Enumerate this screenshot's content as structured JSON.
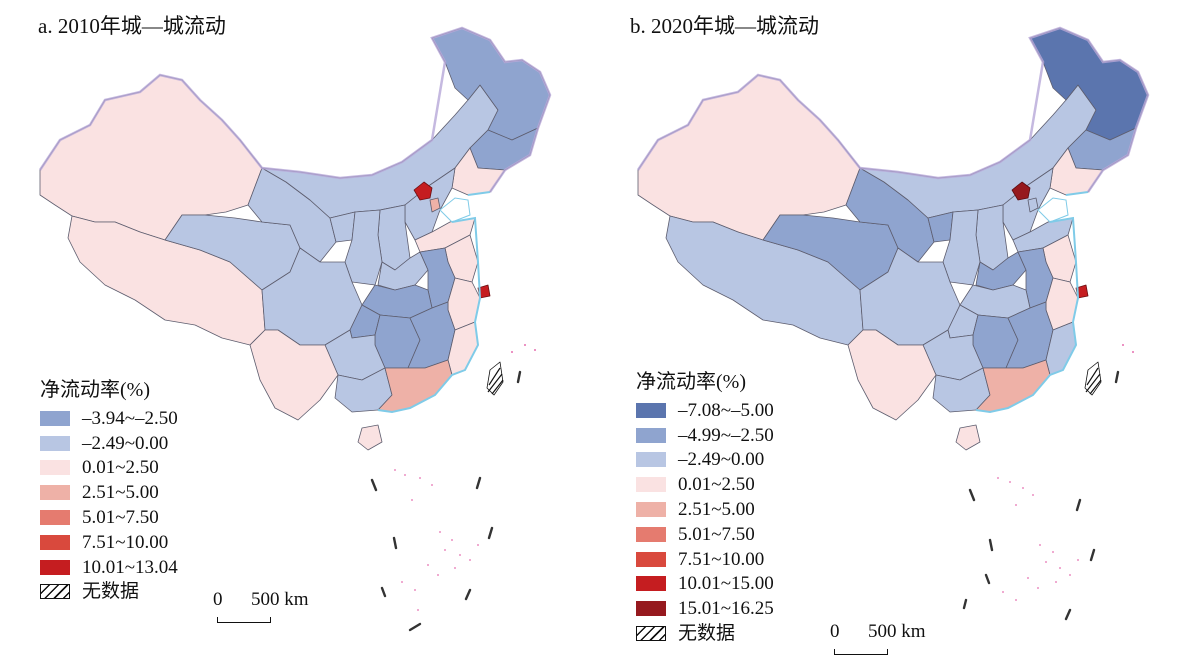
{
  "panels": [
    {
      "title": "a. 2010年城—城流动",
      "legend_title": "净流动率(%)",
      "legend": [
        {
          "label": "–3.94~–2.50",
          "color": "#8fa4cf"
        },
        {
          "label": "–2.49~0.00",
          "color": "#b8c6e3"
        },
        {
          "label": "0.01~2.50",
          "color": "#fae2e2"
        },
        {
          "label": "2.51~5.00",
          "color": "#eeb1a7"
        },
        {
          "label": "5.01~7.50",
          "color": "#e57b6f"
        },
        {
          "label": "7.51~10.00",
          "color": "#d9493d"
        },
        {
          "label": "10.01~13.04",
          "color": "#c51d20"
        }
      ],
      "no_data_label": "无数据",
      "scale_zero": "0",
      "scale_distance": "500 km"
    },
    {
      "title": "b. 2020年城—城流动",
      "legend_title": "净流动率(%)",
      "legend": [
        {
          "label": "–7.08~–5.00",
          "color": "#5b75ae"
        },
        {
          "label": "–4.99~–2.50",
          "color": "#8fa4cf"
        },
        {
          "label": "–2.49~0.00",
          "color": "#b8c6e3"
        },
        {
          "label": "0.01~2.50",
          "color": "#fae2e2"
        },
        {
          "label": "2.51~5.00",
          "color": "#eeb1a7"
        },
        {
          "label": "5.01~7.50",
          "color": "#e57b6f"
        },
        {
          "label": "7.51~10.00",
          "color": "#d9493d"
        },
        {
          "label": "10.01~15.00",
          "color": "#c51d20"
        },
        {
          "label": "15.01~16.25",
          "color": "#96191e"
        }
      ],
      "no_data_label": "无数据",
      "scale_zero": "0",
      "scale_distance": "500 km"
    }
  ]
}
